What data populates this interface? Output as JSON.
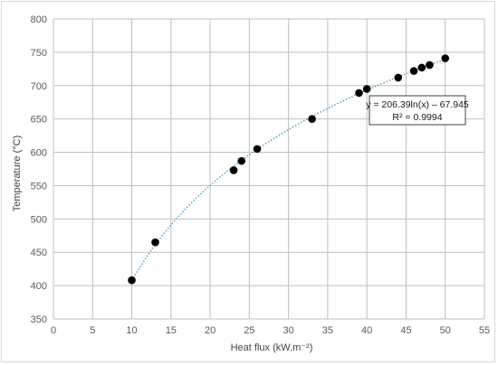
{
  "chart_data": {
    "type": "scatter",
    "xlabel": "Heat flux (kW.m⁻²)",
    "ylabel": "Temperature (°C)",
    "xlim": [
      0,
      55
    ],
    "ylim": [
      350,
      800
    ],
    "xticks": [
      0,
      5,
      10,
      15,
      20,
      25,
      30,
      35,
      40,
      45,
      50,
      55
    ],
    "yticks": [
      350,
      400,
      450,
      500,
      550,
      600,
      650,
      700,
      750,
      800
    ],
    "grid": true,
    "series": [
      {
        "x": [
          10,
          13,
          23,
          24,
          26,
          33,
          39,
          40,
          44,
          46,
          47,
          48,
          50
        ],
        "y": [
          408,
          465,
          573,
          587,
          605,
          650,
          689,
          695,
          712,
          722,
          727,
          731,
          741
        ],
        "color": "#000000"
      }
    ],
    "trendline": {
      "kind": "logarithmic",
      "a": 206.39,
      "b": -67.945,
      "x_range": [
        10,
        50
      ],
      "color": "#4a90c8",
      "style": "dotted"
    },
    "annotations": {
      "equation": "y = 206.39ln(x) – 67.945",
      "r_squared": "R² = 0.9994"
    }
  }
}
